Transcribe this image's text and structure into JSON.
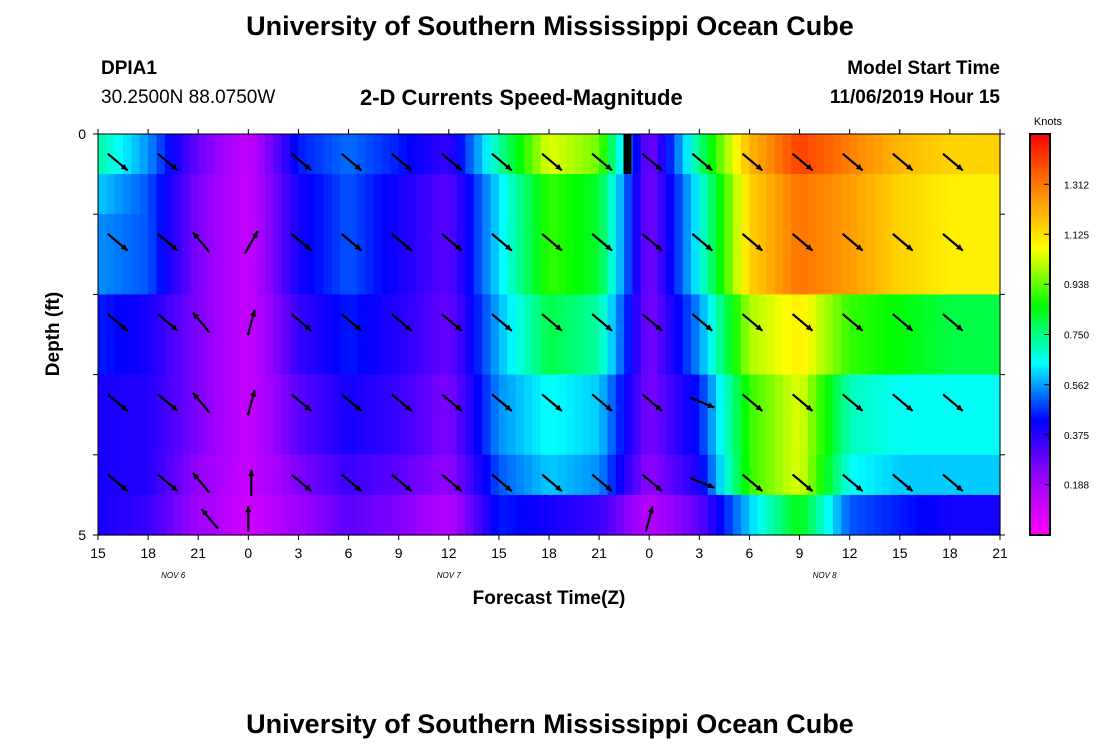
{
  "header": {
    "title": "University of Southern Mississippi Ocean Cube",
    "station": "DPIA1",
    "coords": "30.2500N 88.0750W",
    "plot_title": "2-D Currents Speed-Magnitude",
    "model_label": "Model Start Time",
    "model_time": "11/06/2019 Hour 15"
  },
  "footer": {
    "title": "University of Southern Mississippi Ocean Cube"
  },
  "colors": {
    "palette": [
      "#ff00ff",
      "#9900ff",
      "#0000ff",
      "#00ffff",
      "#00ff00",
      "#ffff00",
      "#ff8800",
      "#ff0000"
    ],
    "arrow": "#000000",
    "marker": "#000000"
  },
  "chart_data": {
    "type": "heatmap",
    "title": "2-D Currents Speed-Magnitude",
    "xlabel": "Forecast Time(Z)",
    "ylabel": "Depth (ft)",
    "ylim": [
      5,
      0
    ],
    "x_hours": [
      0,
      3,
      6,
      9,
      12,
      15,
      18,
      21,
      24,
      27,
      30,
      33,
      36,
      39,
      42,
      45,
      48,
      51,
      54
    ],
    "x_tick_labels": [
      "15",
      "18",
      "21",
      "0",
      "3",
      "6",
      "9",
      "12",
      "15",
      "18",
      "21",
      "0",
      "3",
      "6",
      "9",
      "12",
      "15",
      "18",
      "21"
    ],
    "day_labels": [
      {
        "hour": 4.5,
        "text": "NOV  6"
      },
      {
        "hour": 21,
        "text": "NOV  7"
      },
      {
        "hour": 43.5,
        "text": "NOV  8"
      }
    ],
    "y_tick_values": [
      0,
      1,
      2,
      3,
      4,
      5
    ],
    "y_tick_labels": [
      "0",
      "",
      "",
      "",
      "",
      "5"
    ],
    "colorbar": {
      "label": "Knots",
      "min": 0,
      "max": 1.5,
      "tick_values": [
        0.188,
        0.375,
        0.562,
        0.75,
        0.938,
        1.125,
        1.312
      ],
      "tick_labels": [
        "0.188",
        "0.375",
        "0.562",
        "0.750",
        "0.938",
        "1.125",
        "1.312"
      ]
    },
    "speed_hours": [
      0,
      3,
      6,
      9,
      12,
      15,
      18,
      21,
      24,
      27,
      30,
      33,
      36,
      39,
      42,
      45,
      48,
      51,
      54
    ],
    "depth_rows": [
      {
        "depth": 0.25,
        "speed": [
          0.72,
          0.55,
          0.28,
          0.12,
          0.45,
          0.52,
          0.45,
          0.35,
          0.72,
          1.05,
          0.95,
          0.25,
          0.75,
          1.2,
          1.4,
          1.3,
          1.2,
          1.15,
          1.15
        ]
      },
      {
        "depth": 0.75,
        "speed": [
          0.6,
          0.5,
          0.25,
          0.12,
          0.4,
          0.5,
          0.4,
          0.3,
          0.62,
          0.9,
          0.82,
          0.25,
          0.65,
          1.15,
          1.32,
          1.25,
          1.15,
          1.1,
          1.1
        ]
      },
      {
        "depth": 1.5,
        "speed": [
          0.55,
          0.5,
          0.25,
          0.12,
          0.4,
          0.5,
          0.4,
          0.3,
          0.62,
          0.9,
          0.82,
          0.25,
          0.65,
          1.15,
          1.32,
          1.25,
          1.15,
          1.1,
          1.1
        ]
      },
      {
        "depth": 2.5,
        "speed": [
          0.45,
          0.4,
          0.25,
          0.12,
          0.35,
          0.45,
          0.38,
          0.28,
          0.58,
          0.8,
          0.72,
          0.25,
          0.55,
          1.0,
          1.1,
          0.9,
          0.85,
          0.8,
          0.8
        ]
      },
      {
        "depth": 3.5,
        "speed": [
          0.4,
          0.38,
          0.25,
          0.12,
          0.3,
          0.4,
          0.35,
          0.25,
          0.55,
          0.65,
          0.6,
          0.25,
          0.45,
          0.9,
          1.05,
          0.7,
          0.65,
          0.65,
          0.65
        ]
      },
      {
        "depth": 4.5,
        "speed": [
          0.4,
          0.38,
          0.22,
          0.12,
          0.25,
          0.35,
          0.3,
          0.22,
          0.5,
          0.6,
          0.55,
          0.22,
          0.4,
          0.9,
          1.05,
          0.65,
          0.6,
          0.6,
          0.6
        ]
      },
      {
        "depth": 5.0,
        "speed": [
          0.4,
          0.35,
          0.2,
          0.1,
          0.2,
          0.3,
          0.25,
          0.15,
          0.45,
          0.4,
          0.35,
          0.15,
          0.3,
          0.6,
          0.85,
          0.5,
          0.45,
          0.4,
          0.4
        ]
      }
    ],
    "vector_hours": [
      1,
      4,
      6,
      9,
      12,
      15,
      18,
      21,
      24,
      27,
      30,
      33,
      36,
      39,
      42,
      45,
      48,
      51
    ],
    "vector_depths": [
      0.25,
      1.25,
      2.25,
      3.25,
      4.25
    ],
    "vectors": [
      [
        [
          "SE"
        ],
        [
          "SE",
          "SE",
          "SE",
          "SE",
          "SE"
        ]
      ],
      [
        [
          "SE"
        ],
        [
          "SE",
          "SE",
          "SE",
          "SE",
          "SE"
        ]
      ]
    ],
    "vector_dirs": [
      [
        "SE",
        "SE",
        "SE",
        "SE",
        "SE"
      ],
      [
        "SE",
        "SE",
        "SE",
        "SE",
        "SE"
      ],
      [
        "",
        "NW",
        "NW",
        "NW",
        "NW"
      ],
      [
        "",
        "NE",
        "NNE",
        "NNE",
        "N"
      ],
      [
        "SE",
        "SE",
        "SE",
        "SE",
        "SE"
      ],
      [
        "SE",
        "SE",
        "SE",
        "SE",
        "SE"
      ],
      [
        "SE",
        "SE",
        "SE",
        "SE",
        "SE"
      ],
      [
        "SE",
        "SE",
        "SE",
        "SE",
        "SE"
      ],
      [
        "SE",
        "SE",
        "SE",
        "SE",
        "SE"
      ],
      [
        "SE",
        "SE",
        "SE",
        "SE",
        "SE"
      ],
      [
        "SE",
        "SE",
        "SE",
        "SE",
        "SE"
      ],
      [
        "SE",
        "SE",
        "SE",
        "SE",
        "SE"
      ],
      [
        "SE",
        "SE",
        "SE",
        "ESE",
        "ESE"
      ],
      [
        "SE",
        "SE",
        "SE",
        "SE",
        "SE"
      ],
      [
        "SE",
        "SE",
        "SE",
        "SE",
        "SE"
      ],
      [
        "SE",
        "SE",
        "SE",
        "SE",
        "SE"
      ],
      [
        "SE",
        "SE",
        "SE",
        "SE",
        "SE"
      ],
      [
        "SE",
        "SE",
        "SE",
        "SE",
        "SE"
      ]
    ],
    "bottom_vectors": [
      {
        "hour": 6.7,
        "dir": "NW"
      },
      {
        "hour": 9,
        "dir": "N"
      },
      {
        "hour": 33,
        "dir": "NNE"
      }
    ],
    "forecast_marker_hour": 31.7
  }
}
